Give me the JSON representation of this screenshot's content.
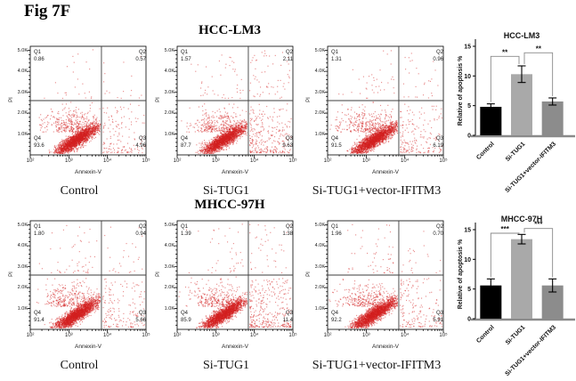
{
  "figure_label": "Fig 7F",
  "rows": [
    {
      "cell_line": "HCC-LM3"
    },
    {
      "cell_line": "MHCC-97H"
    }
  ],
  "flow_axes": {
    "xlabel": "Annexin-V",
    "ylabel": "PI",
    "x_ticks": [
      "10²",
      "10³",
      "10⁴",
      "10⁵"
    ],
    "y_ticks": [
      "5.0K",
      "4.0K",
      "3.0K",
      "2.0K",
      "1.0K"
    ]
  },
  "colors": {
    "dot_red": "#d42020",
    "bar_control": "#000000",
    "bar_situg1": "#a9a9a9",
    "bar_vector": "#8c8c8c",
    "bracket_gray": "#8a8a8a"
  },
  "chart_data": [
    {
      "type": "scatter",
      "panel": "flow-cytometry",
      "row": 0,
      "col": 0,
      "cell_line": "HCC-LM3",
      "condition": "Control",
      "xlabel": "Annexin-V",
      "ylabel": "PI",
      "x_scale": "log10 1e2-1e5",
      "y_scale": "linear 0-5.0K",
      "x_ticks": [
        "10²",
        "10³",
        "10⁴",
        "10⁵"
      ],
      "y_ticks": [
        "5.0K",
        "4.0K",
        "3.0K",
        "2.0K",
        "1.0K"
      ],
      "quadrants": {
        "Q1": "0.86",
        "Q2": "0.57",
        "Q3": "4.96",
        "Q4": "93.6"
      }
    },
    {
      "type": "scatter",
      "panel": "flow-cytometry",
      "row": 0,
      "col": 1,
      "cell_line": "HCC-LM3",
      "condition": "Si-TUG1",
      "xlabel": "Annexin-V",
      "ylabel": "PI",
      "x_scale": "log10 1e2-1e5",
      "y_scale": "linear 0-5.0K",
      "x_ticks": [
        "10²",
        "10³",
        "10⁴",
        "10⁵"
      ],
      "y_ticks": [
        "5.0K",
        "4.0K",
        "3.0K",
        "2.0K",
        "1.0K"
      ],
      "quadrants": {
        "Q1": "1.57",
        "Q2": "2.11",
        "Q3": "9.63",
        "Q4": "87.7"
      }
    },
    {
      "type": "scatter",
      "panel": "flow-cytometry",
      "row": 0,
      "col": 2,
      "cell_line": "HCC-LM3",
      "condition": "Si-TUG1+vector-IFITM3",
      "xlabel": "Annexin-V",
      "ylabel": "PI",
      "x_scale": "log10 1e2-1e5",
      "y_scale": "linear 0-5.0K",
      "x_ticks": [
        "10²",
        "10³",
        "10⁴",
        "10⁵"
      ],
      "y_ticks": [
        "5.0K",
        "4.0K",
        "3.0K",
        "2.0K",
        "1.0K"
      ],
      "quadrants": {
        "Q1": "1.31",
        "Q2": "0.96",
        "Q3": "6.19",
        "Q4": "91.5"
      }
    },
    {
      "type": "bar",
      "row": 0,
      "title": "HCC-LM3",
      "ylabel": "Relative of apoptosis %",
      "categories": [
        "Control",
        "Si-TUG1",
        "Si-TUG1+vector-IFITM3"
      ],
      "values": [
        4.8,
        10.3,
        5.7
      ],
      "errors": [
        0.5,
        1.4,
        0.6
      ],
      "yticks": [
        0,
        5,
        10,
        15
      ],
      "ylim": [
        0,
        15
      ],
      "bar_colors": [
        "#000000",
        "#a9a9a9",
        "#8c8c8c"
      ],
      "significance": [
        {
          "pair": [
            0,
            1
          ],
          "label": "**"
        },
        {
          "pair": [
            1,
            2
          ],
          "label": "**"
        }
      ]
    },
    {
      "type": "scatter",
      "panel": "flow-cytometry",
      "row": 1,
      "col": 0,
      "cell_line": "MHCC-97H",
      "condition": "Control",
      "xlabel": "Annexin-V",
      "ylabel": "PI",
      "x_scale": "log10 1e2-1e5",
      "y_scale": "linear 0-5.0K",
      "x_ticks": [
        "10²",
        "10³",
        "10⁴",
        "10⁵"
      ],
      "y_ticks": [
        "5.0K",
        "4.0K",
        "3.0K",
        "2.0K",
        "1.0K"
      ],
      "quadrants": {
        "Q1": "1.80",
        "Q2": "0.94",
        "Q3": "5.66",
        "Q4": "91.4"
      }
    },
    {
      "type": "scatter",
      "panel": "flow-cytometry",
      "row": 1,
      "col": 1,
      "cell_line": "MHCC-97H",
      "condition": "Si-TUG1",
      "xlabel": "Annexin-V",
      "ylabel": "PI",
      "x_scale": "log10 1e2-1e5",
      "y_scale": "linear 0-5.0K",
      "x_ticks": [
        "10²",
        "10³",
        "10⁴",
        "10⁵"
      ],
      "y_ticks": [
        "5.0K",
        "4.0K",
        "3.0K",
        "2.0K",
        "1.0K"
      ],
      "quadrants": {
        "Q1": "1.39",
        "Q2": "1.38",
        "Q3": "11.4",
        "Q4": "85.9"
      }
    },
    {
      "type": "scatter",
      "panel": "flow-cytometry",
      "row": 1,
      "col": 2,
      "cell_line": "MHCC-97H",
      "condition": "Si-TUG1+vector-IFITM3",
      "xlabel": "Annexin-V",
      "ylabel": "PI",
      "x_scale": "log10 1e2-1e5",
      "y_scale": "linear 0-5.0K",
      "x_ticks": [
        "10²",
        "10³",
        "10⁴",
        "10⁵"
      ],
      "y_ticks": [
        "5.0K",
        "4.0K",
        "3.0K",
        "2.0K",
        "1.0K"
      ],
      "quadrants": {
        "Q1": "1.96",
        "Q2": "0.70",
        "Q3": "5.91",
        "Q4": "92.2"
      }
    },
    {
      "type": "bar",
      "row": 1,
      "title": "MHCC-97H",
      "ylabel": "Relative of apoptosis %",
      "categories": [
        "Control",
        "Si-TUG1",
        "Si-TUG1+vector-IFITM3"
      ],
      "values": [
        5.6,
        13.4,
        5.6
      ],
      "errors": [
        1.1,
        0.8,
        1.1
      ],
      "yticks": [
        0,
        5,
        10,
        15
      ],
      "ylim": [
        0,
        15
      ],
      "bar_colors": [
        "#000000",
        "#a9a9a9",
        "#8c8c8c"
      ],
      "significance": [
        {
          "pair": [
            0,
            1
          ],
          "label": "***"
        },
        {
          "pair": [
            1,
            2
          ],
          "label": "***"
        }
      ]
    }
  ]
}
